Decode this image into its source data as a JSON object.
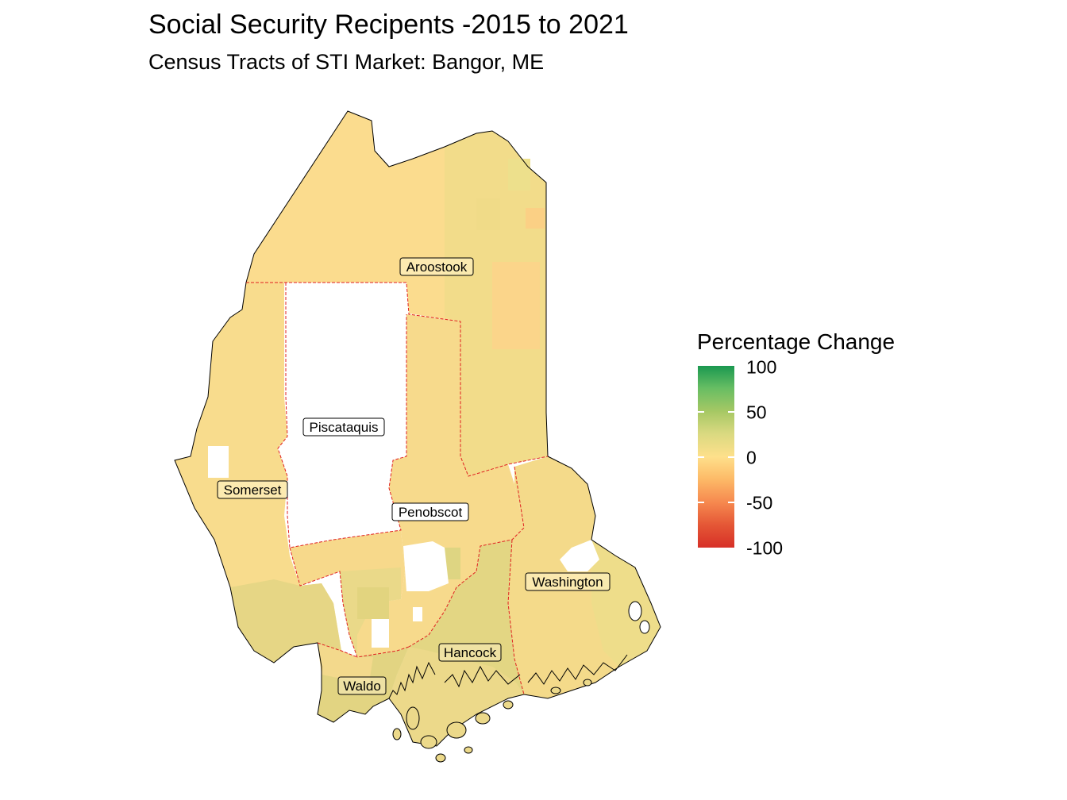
{
  "title": "Social Security Recipents -2015 to 2021",
  "subtitle": "Census Tracts of STI Market: Bangor, ME",
  "legend": {
    "title": "Percentage Change",
    "labels": [
      "100",
      "50",
      "0",
      "-50",
      "-100"
    ],
    "range": [
      -100,
      100
    ],
    "colors": [
      "#d73027",
      "#fee08b",
      "#1a9850"
    ]
  },
  "counties": [
    {
      "name": "Aroostook"
    },
    {
      "name": "Piscataquis"
    },
    {
      "name": "Somerset"
    },
    {
      "name": "Penobscot"
    },
    {
      "name": "Washington"
    },
    {
      "name": "Hancock"
    },
    {
      "name": "Waldo"
    }
  ],
  "boundary_color": "#e02020"
}
